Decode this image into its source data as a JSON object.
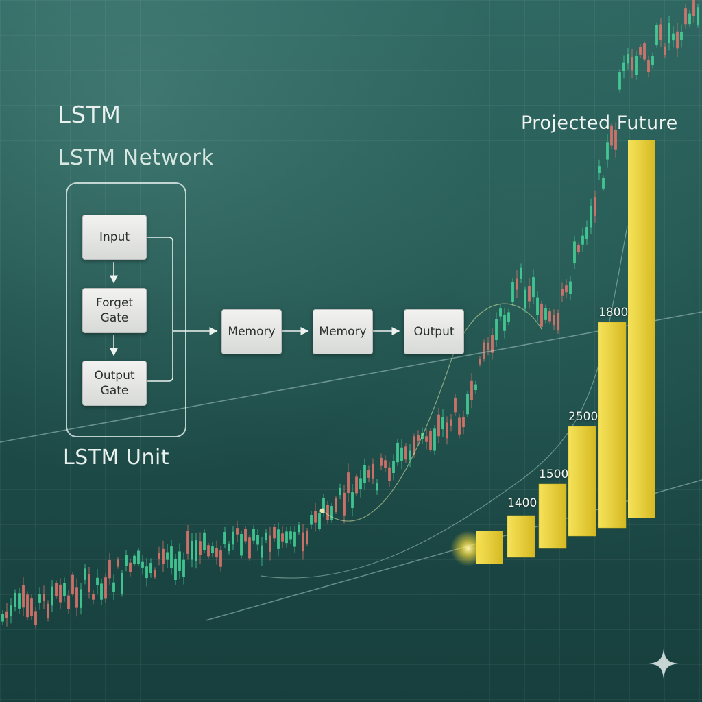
{
  "labels": {
    "lstm": "LSTM",
    "network": "LSTM Network",
    "unit": "LSTM Unit",
    "projected": "Projected Future"
  },
  "unit_nodes": {
    "input": "Input",
    "forget": "Forget Gate",
    "output_gate": "Output Gate"
  },
  "pipeline": {
    "memory_1": "Memory",
    "memory_2": "Memory",
    "output": "Output"
  },
  "chart_data": {
    "type": "bar",
    "title": "Projected Future",
    "bar_labels": [
      "1400",
      "1500",
      "2500",
      "1800"
    ],
    "values": [
      1400,
      1500,
      2500,
      1800
    ],
    "colors": {
      "bar": "#f0d63a",
      "bar_dark": "#c9ad1c",
      "candle_up": "#46d39a",
      "candle_down": "#e2766d"
    }
  }
}
